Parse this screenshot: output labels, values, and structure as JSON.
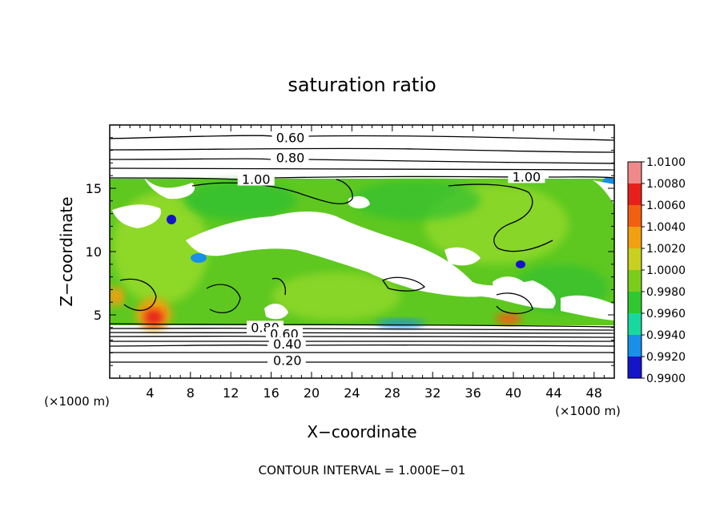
{
  "chart_data": {
    "type": "heatmap",
    "title": "saturation ratio",
    "xlabel": "X−coordinate",
    "ylabel": "Z−coordinate",
    "x_unit_left": "(×1000 m)",
    "x_unit_right": "(×1000 m)",
    "footnote": "CONTOUR INTERVAL = 1.000E−01",
    "xlim": [
      0,
      50
    ],
    "ylim": [
      0,
      20
    ],
    "x_ticks": [
      4,
      8,
      12,
      16,
      20,
      24,
      28,
      32,
      36,
      40,
      44,
      48
    ],
    "y_ticks": [
      5,
      10,
      15
    ],
    "colorbar": {
      "levels": [
        "1.0100",
        "1.0080",
        "1.0060",
        "1.0040",
        "1.0020",
        "1.0000",
        "0.9980",
        "0.9960",
        "0.9940",
        "0.9920",
        "0.9900"
      ],
      "colors": [
        "#f08a8a",
        "#e8201c",
        "#f06010",
        "#f0a010",
        "#c8d020",
        "#7ccc1c",
        "#30c830",
        "#18d8a0",
        "#1890e8",
        "#1414c8",
        "#500090"
      ]
    },
    "contour_labels": [
      {
        "text": "0.60",
        "x": 17.9,
        "z": 18.9
      },
      {
        "text": "0.80",
        "x": 17.9,
        "z": 17.3
      },
      {
        "text": "1.00",
        "x": 14.5,
        "z": 15.6
      },
      {
        "text": "1.00",
        "x": 41.3,
        "z": 15.8
      },
      {
        "text": "0.80",
        "x": 15.4,
        "z": 3.9
      },
      {
        "text": "0.60",
        "x": 17.3,
        "z": 3.4
      },
      {
        "text": "0.40",
        "x": 17.6,
        "z": 2.6
      },
      {
        "text": "0.20",
        "x": 17.6,
        "z": 1.3
      }
    ]
  }
}
